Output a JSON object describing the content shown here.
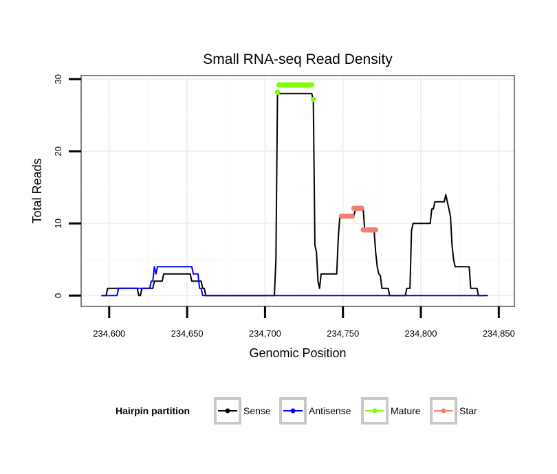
{
  "chart_data": {
    "type": "line",
    "title": "Small RNA-seq Read Density",
    "xlabel": "Genomic Position",
    "ylabel": "Total Reads",
    "xlim": [
      234582,
      234860
    ],
    "ylim": [
      -1.5,
      30.5
    ],
    "x_ticks": [
      234600,
      234650,
      234700,
      234750,
      234800,
      234850
    ],
    "x_tick_labels": [
      "234,600",
      "234,650",
      "234,700",
      "234,750",
      "234,800",
      "234,850"
    ],
    "y_ticks": [
      0,
      10,
      20,
      30
    ],
    "y_tick_labels": [
      "0",
      "10",
      "20",
      "30"
    ],
    "grid": true,
    "legend": {
      "position": "bottom",
      "title": "Hairpin partition",
      "entries": [
        {
          "name": "Sense",
          "color": "#000000"
        },
        {
          "name": "Antisense",
          "color": "#0000ff"
        },
        {
          "name": "Mature",
          "color": "#7fff00"
        },
        {
          "name": "Star",
          "color": "#f08070"
        }
      ]
    },
    "series": [
      {
        "name": "Sense",
        "color": "#000000",
        "kind": "line",
        "points": [
          [
            234595,
            0
          ],
          [
            234598,
            0
          ],
          [
            234599,
            1
          ],
          [
            234618,
            1
          ],
          [
            234619,
            0
          ],
          [
            234620,
            0
          ],
          [
            234621,
            1
          ],
          [
            234628,
            1
          ],
          [
            234629,
            2
          ],
          [
            234634,
            2
          ],
          [
            234635,
            3
          ],
          [
            234652,
            3
          ],
          [
            234653,
            2
          ],
          [
            234659,
            2
          ],
          [
            234660,
            1
          ],
          [
            234661,
            1
          ],
          [
            234662,
            0
          ],
          [
            234706,
            0
          ],
          [
            234707,
            5
          ],
          [
            234708,
            28
          ],
          [
            234730,
            28
          ],
          [
            234731,
            27
          ],
          [
            234732,
            7
          ],
          [
            234733,
            6
          ],
          [
            234734,
            2
          ],
          [
            234735,
            1
          ],
          [
            234736,
            3
          ],
          [
            234746,
            3
          ],
          [
            234747,
            8
          ],
          [
            234748,
            11
          ],
          [
            234757,
            11
          ],
          [
            234758,
            12
          ],
          [
            234763,
            12
          ],
          [
            234764,
            9
          ],
          [
            234770,
            9
          ],
          [
            234771,
            6
          ],
          [
            234772,
            4
          ],
          [
            234773,
            3
          ],
          [
            234774,
            2.8
          ],
          [
            234775,
            1
          ],
          [
            234779,
            1
          ],
          [
            234780,
            0
          ],
          [
            234790,
            0
          ],
          [
            234791,
            1
          ],
          [
            234793,
            1
          ],
          [
            234794,
            9
          ],
          [
            234795,
            10
          ],
          [
            234806,
            10
          ],
          [
            234807,
            12
          ],
          [
            234808,
            12
          ],
          [
            234809,
            13
          ],
          [
            234815,
            13
          ],
          [
            234816,
            14
          ],
          [
            234817,
            13
          ],
          [
            234819,
            11
          ],
          [
            234820,
            7
          ],
          [
            234821,
            5
          ],
          [
            234822,
            4
          ],
          [
            234831,
            4
          ],
          [
            234832,
            1
          ],
          [
            234836,
            1
          ],
          [
            234837,
            0
          ],
          [
            234843,
            0
          ]
        ]
      },
      {
        "name": "Antisense",
        "color": "#0000ff",
        "kind": "line",
        "points": [
          [
            234595,
            0
          ],
          [
            234605,
            0
          ],
          [
            234606,
            1
          ],
          [
            234626,
            1
          ],
          [
            234627,
            2
          ],
          [
            234628,
            2
          ],
          [
            234629,
            4
          ],
          [
            234630,
            3
          ],
          [
            234631,
            4
          ],
          [
            234653,
            4
          ],
          [
            234654,
            3
          ],
          [
            234657,
            3
          ],
          [
            234658,
            1
          ],
          [
            234659,
            1
          ],
          [
            234660,
            0
          ],
          [
            234841,
            0
          ]
        ]
      },
      {
        "name": "Mature",
        "color": "#7fff00",
        "kind": "markers",
        "points": [
          [
            234708,
            28.2
          ],
          [
            234709,
            29.2
          ],
          [
            234710,
            29.2
          ],
          [
            234711,
            29.2
          ],
          [
            234712,
            29.2
          ],
          [
            234713,
            29.2
          ],
          [
            234714,
            29.2
          ],
          [
            234715,
            29.2
          ],
          [
            234716,
            29.2
          ],
          [
            234717,
            29.2
          ],
          [
            234718,
            29.2
          ],
          [
            234719,
            29.2
          ],
          [
            234720,
            29.2
          ],
          [
            234721,
            29.2
          ],
          [
            234722,
            29.2
          ],
          [
            234723,
            29.2
          ],
          [
            234724,
            29.2
          ],
          [
            234725,
            29.2
          ],
          [
            234726,
            29.2
          ],
          [
            234727,
            29.2
          ],
          [
            234728,
            29.2
          ],
          [
            234729,
            29.2
          ],
          [
            234730,
            29.2
          ],
          [
            234731,
            27.2
          ]
        ]
      },
      {
        "name": "Star",
        "color": "#f08070",
        "kind": "markers",
        "points": [
          [
            234749,
            11
          ],
          [
            234750,
            11
          ],
          [
            234751,
            11
          ],
          [
            234752,
            11
          ],
          [
            234753,
            11
          ],
          [
            234754,
            11
          ],
          [
            234755,
            11
          ],
          [
            234756,
            11
          ],
          [
            234757,
            12.1
          ],
          [
            234758,
            12.1
          ],
          [
            234759,
            12.1
          ],
          [
            234760,
            12.1
          ],
          [
            234761,
            12.1
          ],
          [
            234762,
            12.1
          ],
          [
            234763,
            9.1
          ],
          [
            234764,
            9.1
          ],
          [
            234765,
            9.1
          ],
          [
            234766,
            9.1
          ],
          [
            234767,
            9.1
          ],
          [
            234768,
            9.1
          ],
          [
            234769,
            9.1
          ],
          [
            234770,
            9.1
          ],
          [
            234771,
            9.1
          ]
        ]
      }
    ]
  }
}
